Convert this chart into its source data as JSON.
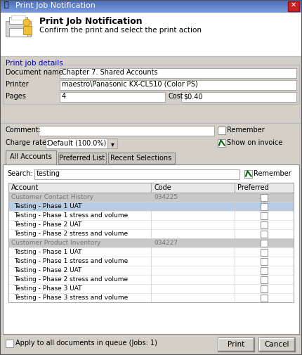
{
  "title": "Print Job Notification",
  "bg_color": "#d4d0c8",
  "white": "#ffffff",
  "dialog_title": "Print Job Notification",
  "dialog_subtitle": "Confirm the print and select the print action",
  "section_label": "Print job details",
  "section_label_color": "#0000cc",
  "doc_name": "Chapter 7. Shared Accounts",
  "printer": "maestro\\Panasonic KX-CL510 (Color PS)",
  "pages": "4",
  "cost": "$0.40",
  "comment_label": "Comment:",
  "charge_rate_label": "Charge rate:",
  "charge_rate_value": "Default (100.0%)",
  "tabs": [
    "All Accounts",
    "Preferred List",
    "Recent Selections"
  ],
  "active_tab": 0,
  "search_label": "Search:",
  "search_value": "testing",
  "table_headers": [
    "Account",
    "Code",
    "Preferred"
  ],
  "table_rows": [
    {
      "account": "Customer Contact History",
      "code": "034225",
      "is_group": true,
      "selected": false
    },
    {
      "account": "Testing - Phase 1 UAT",
      "code": "",
      "is_group": false,
      "selected": true
    },
    {
      "account": "Testing - Phase 1 stress and volume",
      "code": "",
      "is_group": false,
      "selected": false
    },
    {
      "account": "Testing - Phase 2 UAT",
      "code": "",
      "is_group": false,
      "selected": false
    },
    {
      "account": "Testing - Phase 2 stress and volume",
      "code": "",
      "is_group": false,
      "selected": false
    },
    {
      "account": "Customer Product Inventory",
      "code": "034227",
      "is_group": true,
      "selected": false
    },
    {
      "account": "Testing - Phase 1 UAT",
      "code": "",
      "is_group": false,
      "selected": false
    },
    {
      "account": "Testing - Phase 1 stress and volume",
      "code": "",
      "is_group": false,
      "selected": false
    },
    {
      "account": "Testing - Phase 2 UAT",
      "code": "",
      "is_group": false,
      "selected": false
    },
    {
      "account": "Testing - Phase 2 stress and volume",
      "code": "",
      "is_group": false,
      "selected": false
    },
    {
      "account": "Testing - Phase 3 UAT",
      "code": "",
      "is_group": false,
      "selected": false
    },
    {
      "account": "Testing - Phase 3 stress and volume",
      "code": "",
      "is_group": false,
      "selected": false
    }
  ],
  "footer_text": "Apply to all documents in queue (Jobs: 1)",
  "btn_print": "Print",
  "btn_cancel": "Cancel"
}
